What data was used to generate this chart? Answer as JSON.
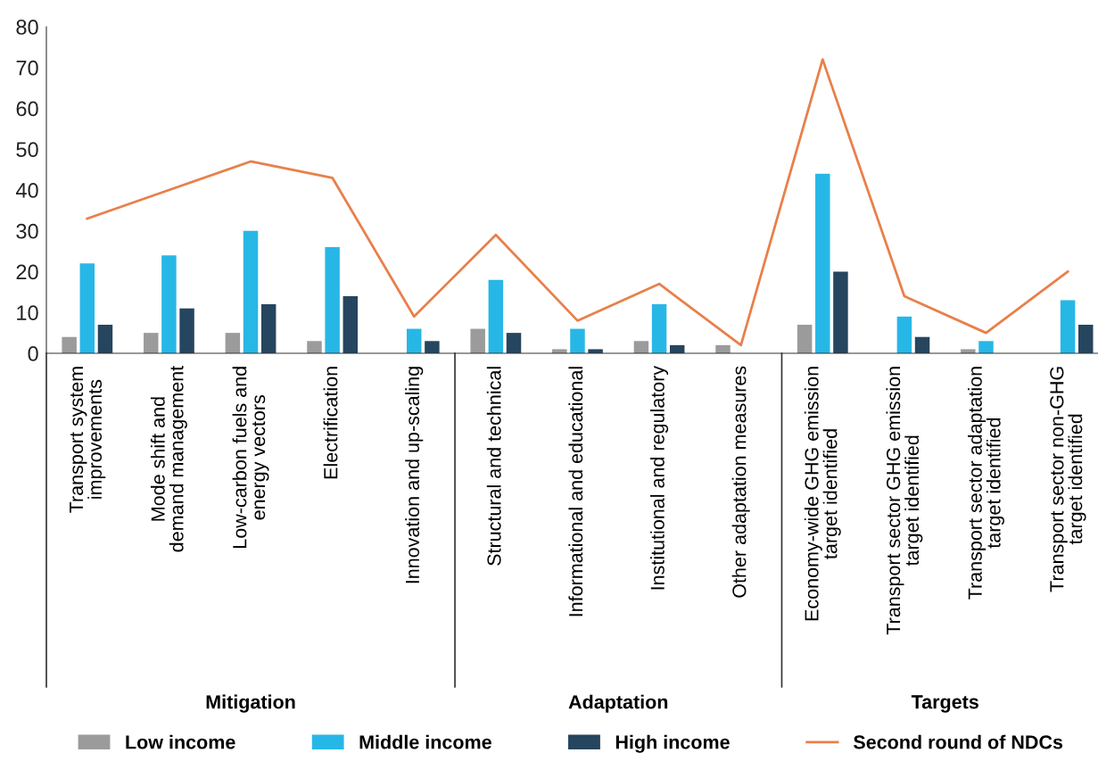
{
  "chart_data": {
    "type": "bar",
    "categories": [
      "Transport system\nimprovements",
      "Mode shift and\ndemand management",
      "Low-carbon fuels and\nenergy vectors",
      "Electrification",
      "Innovation and up-scaling",
      "Structural and technical",
      "Informational and educational",
      "Institutional and regulatory",
      "Other adaptation measures",
      "Economy-wide GHG emission\ntarget identified",
      "Transport sector GHG emission\ntarget identified",
      "Transport sector adaptation\ntarget identified",
      "Transport sector non-GHG\ntarget identified"
    ],
    "series": [
      {
        "name": "Low income",
        "color": "#9b9b9b",
        "values": [
          4,
          5,
          5,
          3,
          null,
          6,
          1,
          3,
          2,
          7,
          null,
          1,
          null
        ]
      },
      {
        "name": "Middle income",
        "color": "#27b7e6",
        "values": [
          22,
          24,
          30,
          26,
          6,
          18,
          6,
          12,
          null,
          44,
          9,
          3,
          13
        ]
      },
      {
        "name": "High income",
        "color": "#26455f",
        "values": [
          7,
          11,
          12,
          14,
          3,
          5,
          1,
          2,
          null,
          20,
          4,
          null,
          7
        ]
      },
      {
        "name": "Second round of NDCs",
        "type": "line",
        "color": "#e8804a",
        "values": [
          33,
          40,
          47,
          43,
          9,
          29,
          8,
          17,
          2,
          72,
          14,
          5,
          20
        ]
      }
    ],
    "annotations": [
      "Mitigation",
      "Adaptation",
      "Targets"
    ],
    "ylim": [
      0,
      80
    ],
    "yticks": [
      0,
      10,
      20,
      30,
      40,
      50,
      60,
      70,
      80
    ],
    "legend": "bottom",
    "grid": false
  }
}
